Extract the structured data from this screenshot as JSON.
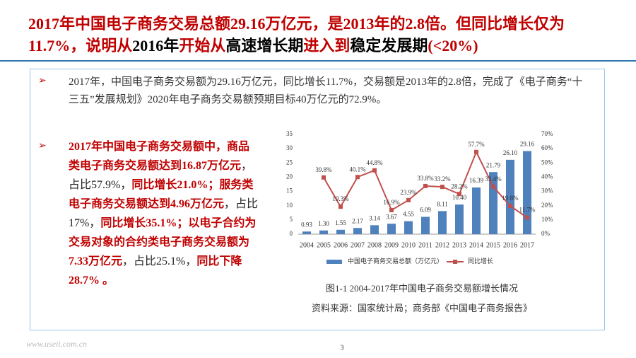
{
  "title": [
    {
      "text": "2017年中国电子商务交易总额29.16万亿元，是2013年的2.8倍。但同比增长仅为11.7%，说明从",
      "color": "#c00000"
    },
    {
      "text": "2016年",
      "color": "#000000"
    },
    {
      "text": "开始从",
      "color": "#c00000"
    },
    {
      "text": "高速增长期",
      "color": "#000000"
    },
    {
      "text": "进入到",
      "color": "#c00000"
    },
    {
      "text": "稳定发展期",
      "color": "#000000"
    },
    {
      "text": "(<20%)",
      "color": "#c00000"
    }
  ],
  "bullets": [
    {
      "marker": "➢",
      "segments": [
        {
          "text": "2017年，中国电子商务交易额为29.16万亿元，同比增长11.7%，交易额是2013年的2.8倍，完成了《电子商务“十三五”发展规划》2020年电子商务交易额预期目标40万亿元的72.9%。",
          "color": "#333333"
        }
      ]
    },
    {
      "marker": "➢",
      "segments": [
        {
          "text": "2017年中国电子商务交易额中，商品类电子商务交易额达到16.87万亿元",
          "color": "#c00000"
        },
        {
          "text": "，占比57.9%，",
          "color": "#222222"
        },
        {
          "text": "同比增长21.0%；服务类电子商务交易额达到4.96万亿元",
          "color": "#c00000"
        },
        {
          "text": "，占比17%，",
          "color": "#222222"
        },
        {
          "text": "同比增长35.1%；以电子合约为交易对象的合约类电子商务交易额为7.33万亿元",
          "color": "#c00000"
        },
        {
          "text": "，占比25.1%，",
          "color": "#222222"
        },
        {
          "text": "同比下降28.7% 。",
          "color": "#c00000"
        }
      ]
    }
  ],
  "chart_data": {
    "type": "bar_line",
    "categories": [
      "2004",
      "2005",
      "2006",
      "2007",
      "2008",
      "2009",
      "2010",
      "2011",
      "2012",
      "2013",
      "2014",
      "2015",
      "2016",
      "2017"
    ],
    "series": [
      {
        "name": "中国电子商务交易总额（万亿元）",
        "type": "bar",
        "color": "#4f81bd",
        "values": [
          0.93,
          1.3,
          1.55,
          2.17,
          3.14,
          3.67,
          4.55,
          6.09,
          8.11,
          10.4,
          16.39,
          21.79,
          26.1,
          29.16
        ],
        "value_labels": [
          "0.93",
          "1.30",
          "1.55",
          "2.17",
          "3.14",
          "3.67",
          "4.55",
          "6.09",
          "8.11",
          "10.40",
          "16.39",
          "21.79",
          "26.10",
          "29.16"
        ]
      },
      {
        "name": "同比增长",
        "type": "line",
        "axis": "y2",
        "color": "#c0504d",
        "values": [
          null,
          39.8,
          19.3,
          40.1,
          44.8,
          16.9,
          23.9,
          33.8,
          33.2,
          28.2,
          57.7,
          33.4,
          19.8,
          11.7
        ],
        "value_labels": [
          null,
          "39.8%",
          "19.3%",
          "40.1%",
          "44.8%",
          "16.9%",
          "23.9%",
          "33.8%",
          "33.2%",
          "28.2%",
          "57.7%",
          "33.4%",
          "19.8%",
          "11.7%"
        ]
      }
    ],
    "ylim": [
      0,
      35
    ],
    "yticks": [
      0,
      5,
      10,
      15,
      20,
      25,
      30,
      35
    ],
    "y2lim": [
      0,
      70
    ],
    "y2ticks": [
      {
        "value": 0,
        "label": "0%"
      },
      {
        "value": 10,
        "label": "10%"
      },
      {
        "value": 20,
        "label": "20%"
      },
      {
        "value": 30,
        "label": "30%"
      },
      {
        "value": 40,
        "label": "40%"
      },
      {
        "value": 50,
        "label": "50%"
      },
      {
        "value": 60,
        "label": "60%"
      },
      {
        "value": 70,
        "label": "70%"
      }
    ],
    "legend": "bottom"
  },
  "caption": "图1-1  2004-2017年中国电子商务交易额增长情况",
  "source": "资料来源：国家统计局；商务部《中国电子商务报告》",
  "watermark": "www.useit.com.cn",
  "page_number": "3"
}
